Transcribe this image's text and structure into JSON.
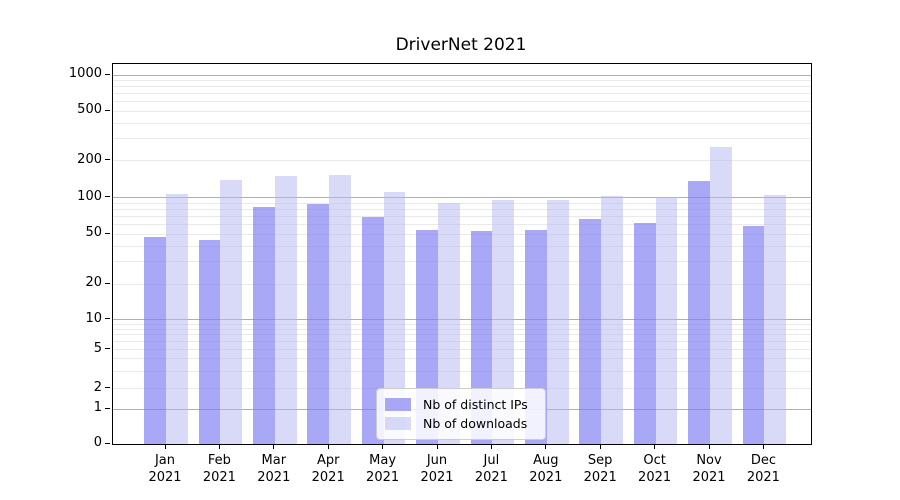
{
  "chart_data": {
    "type": "bar",
    "title": "DriverNet 2021",
    "categories": [
      "Jan",
      "Feb",
      "Mar",
      "Apr",
      "May",
      "Jun",
      "Jul",
      "Aug",
      "Sep",
      "Oct",
      "Nov",
      "Dec"
    ],
    "x_tick_second_line": "2021",
    "series": [
      {
        "name": "Nb of distinct IPs",
        "color": "rgba(125,125,242,0.67)",
        "values": [
          47,
          45,
          84,
          89,
          69,
          54,
          53,
          54,
          66,
          62,
          135,
          58
        ]
      },
      {
        "name": "Nb of downloads",
        "color": "rgba(180,180,242,0.5)",
        "values": [
          107,
          139,
          150,
          153,
          110,
          90,
          95,
          96,
          103,
          101,
          258,
          104
        ]
      }
    ],
    "y_axis": {
      "scale": "symlog",
      "ticks": [
        0,
        1,
        2,
        5,
        10,
        20,
        50,
        100,
        200,
        500,
        1000
      ],
      "major_gridlines": [
        1,
        10,
        100,
        1000
      ],
      "minor_gridlines": [
        2,
        3,
        4,
        5,
        6,
        7,
        8,
        9,
        20,
        30,
        40,
        50,
        60,
        70,
        80,
        90,
        200,
        300,
        400,
        500,
        600,
        700,
        800,
        900
      ],
      "ylim": [
        0,
        1230
      ]
    },
    "grid": {
      "major_color": "#b0b0b0",
      "minor_color": "#eaeaea"
    },
    "legend": {
      "position": "bottom-center",
      "entries": [
        "Nb of distinct IPs",
        "Nb of downloads"
      ]
    }
  }
}
